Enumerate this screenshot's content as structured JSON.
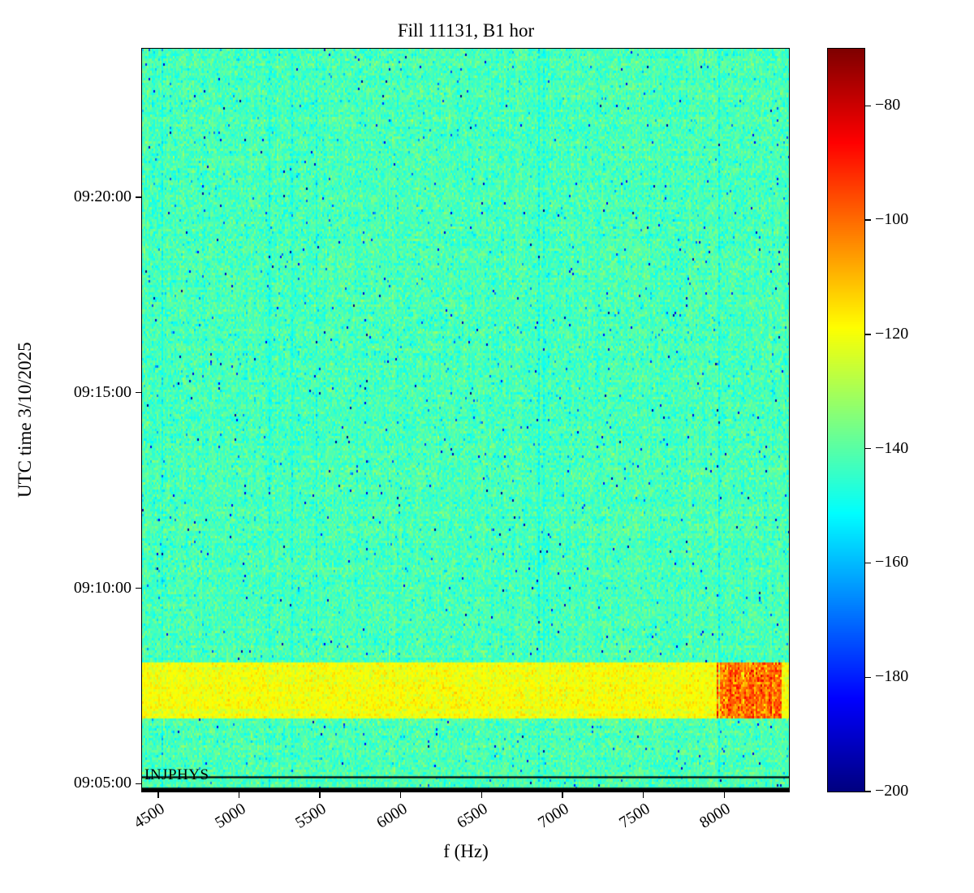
{
  "chart_data": {
    "type": "heatmap",
    "title": "Fill 11131, B1 hor",
    "xlabel": "f (Hz)",
    "ylabel": "UTC time 3/10/2025",
    "x_range": [
      4400,
      8400
    ],
    "x_ticks": [
      {
        "value": 4500,
        "label": "4500"
      },
      {
        "value": 5000,
        "label": "5000"
      },
      {
        "value": 5500,
        "label": "5500"
      },
      {
        "value": 6000,
        "label": "6000"
      },
      {
        "value": 6500,
        "label": "6500"
      },
      {
        "value": 7000,
        "label": "7000"
      },
      {
        "value": 7500,
        "label": "7500"
      },
      {
        "value": 8000,
        "label": "8000"
      }
    ],
    "time_start": "09:04:48",
    "time_end": "09:23:48",
    "y_ticks": [
      {
        "time": "09:05:00",
        "label": "09:05:00"
      },
      {
        "time": "09:10:00",
        "label": "09:10:00"
      },
      {
        "time": "09:15:00",
        "label": "09:15:00"
      },
      {
        "time": "09:20:00",
        "label": "09:20:00"
      }
    ],
    "colorbar": {
      "vmin": -200,
      "vmax": -70,
      "colormap": "jet",
      "ticks": [
        {
          "value": -80,
          "label": "−80"
        },
        {
          "value": -100,
          "label": "−100"
        },
        {
          "value": -120,
          "label": "−120"
        },
        {
          "value": -140,
          "label": "−140"
        },
        {
          "value": -160,
          "label": "−160"
        },
        {
          "value": -180,
          "label": "−180"
        },
        {
          "value": -200,
          "label": "−200"
        }
      ]
    },
    "background_noise": {
      "mean_db": -142,
      "std_db": 4
    },
    "features": [
      {
        "name": "injection-band",
        "time_start": "09:06:40",
        "time_end": "09:08:05",
        "freq_start": 4400,
        "freq_end": 8400,
        "mean_db": -120,
        "std_db": 3
      },
      {
        "name": "hot-spot",
        "time_start": "09:06:40",
        "time_end": "09:08:05",
        "freq_start": 7950,
        "freq_end": 8350,
        "mean_db": -101,
        "std_db": 7
      },
      {
        "name": "bottom-edge-line",
        "time": "09:04:52"
      }
    ],
    "annotation": {
      "label": "INJPHYS",
      "time": "09:05:10"
    }
  }
}
